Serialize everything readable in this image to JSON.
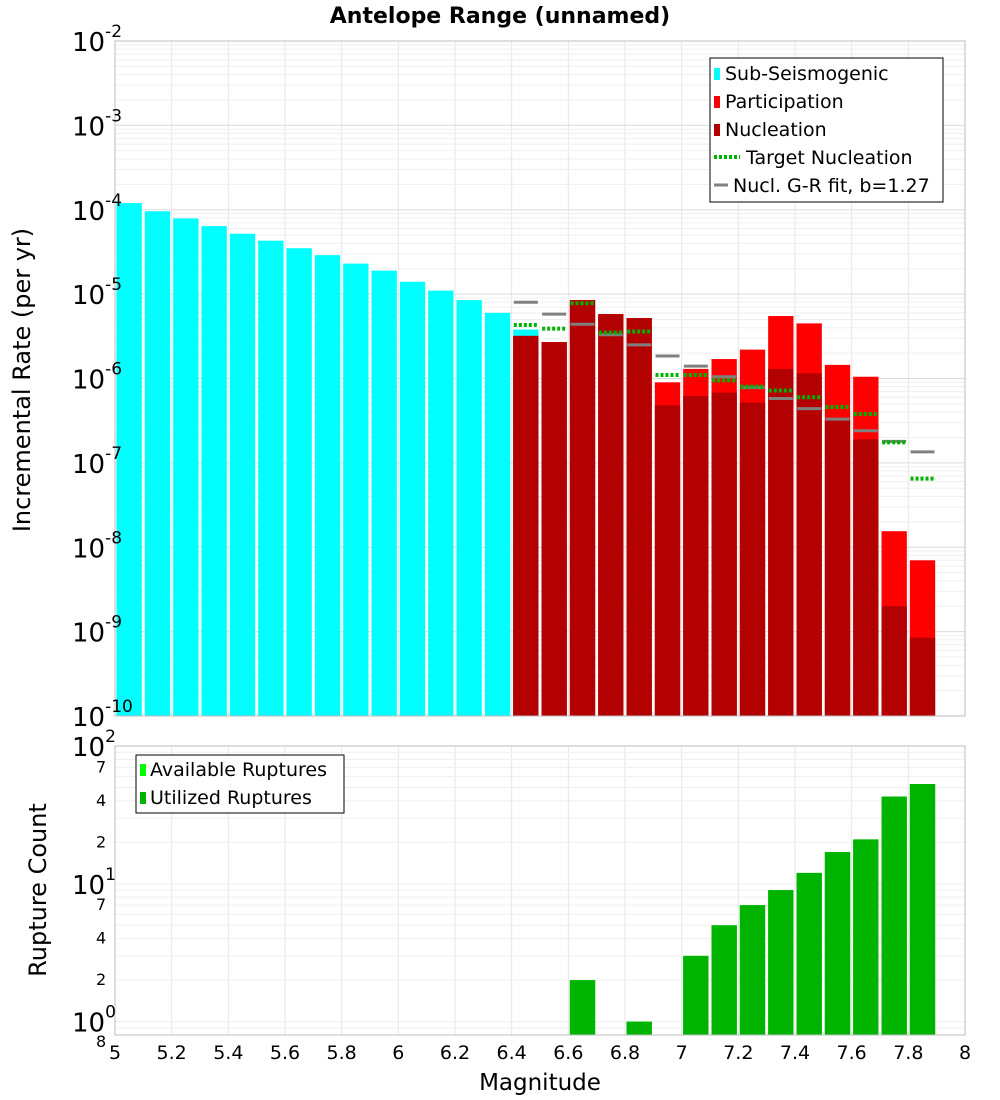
{
  "chart_data": [
    {
      "type": "bar",
      "title": "Antelope Range (unnamed)",
      "xlabel": "",
      "ylabel": "Incremental Rate (per yr)",
      "yscale": "log",
      "xlim": [
        5,
        8
      ],
      "ylim": [
        1e-10,
        0.01
      ],
      "y_ticks": [
        {
          "base": "10",
          "exp": "-10",
          "v": 1e-10
        },
        {
          "base": "10",
          "exp": "-9",
          "v": 1e-09
        },
        {
          "base": "10",
          "exp": "-8",
          "v": 1e-08
        },
        {
          "base": "10",
          "exp": "-7",
          "v": 1e-07
        },
        {
          "base": "10",
          "exp": "-6",
          "v": 1e-06
        },
        {
          "base": "10",
          "exp": "-5",
          "v": 1e-05
        },
        {
          "base": "10",
          "exp": "-4",
          "v": 0.0001
        },
        {
          "base": "10",
          "exp": "-3",
          "v": 0.001
        },
        {
          "base": "10",
          "exp": "-2",
          "v": 0.01
        }
      ],
      "legend": {
        "position": "top-right",
        "entries": [
          {
            "label": "Sub-Seismogenic",
            "color": "#00ffff",
            "style": "box"
          },
          {
            "label": "Participation",
            "color": "#ff0000",
            "style": "box"
          },
          {
            "label": "Nucleation",
            "color": "#b30000",
            "style": "box"
          },
          {
            "label": "Target Nucleation",
            "color": "#00b300",
            "style": "dotted"
          },
          {
            "label": "Nucl. G-R fit, b=1.27",
            "color": "#808080",
            "style": "line"
          }
        ]
      },
      "series": [
        {
          "name": "Sub-Seismogenic",
          "color": "#00ffff",
          "x": [
            5.0,
            5.1,
            5.2,
            5.3,
            5.4,
            5.5,
            5.6,
            5.7,
            5.8,
            5.9,
            6.0,
            6.1,
            6.2,
            6.3,
            6.4
          ],
          "values": [
            0.00012,
            9.6e-05,
            7.9e-05,
            6.4e-05,
            5.2e-05,
            4.3e-05,
            3.5e-05,
            2.9e-05,
            2.3e-05,
            1.9e-05,
            1.4e-05,
            1.1e-05,
            8.5e-06,
            6e-06,
            3.8e-06
          ]
        },
        {
          "name": "Participation",
          "color": "#ff0000",
          "x": [
            6.4,
            6.5,
            6.6,
            6.7,
            6.8,
            6.9,
            7.0,
            7.1,
            7.2,
            7.3,
            7.4,
            7.5,
            7.6,
            7.7,
            7.8,
            7.9
          ],
          "values": [
            3.2e-06,
            2.7e-06,
            8.5e-06,
            5.8e-06,
            5.2e-06,
            9e-07,
            1.3e-06,
            1.7e-06,
            2.2e-06,
            5.5e-06,
            4.5e-06,
            1.45e-06,
            1.05e-06,
            1.55e-08,
            7e-09,
            0
          ]
        },
        {
          "name": "Nucleation",
          "color": "#b30000",
          "x": [
            6.4,
            6.5,
            6.6,
            6.7,
            6.8,
            6.9,
            7.0,
            7.1,
            7.2,
            7.3,
            7.4,
            7.5,
            7.6,
            7.7,
            7.8,
            7.9
          ],
          "values": [
            3.2e-06,
            2.7e-06,
            8.5e-06,
            5.8e-06,
            5.2e-06,
            4.8e-07,
            6.2e-07,
            6.8e-07,
            5.2e-07,
            1.3e-06,
            1.15e-06,
            3.3e-07,
            1.9e-07,
            2e-09,
            8.5e-10,
            0
          ]
        },
        {
          "name": "Target Nucleation",
          "color": "#00b300",
          "x": [
            6.45,
            6.55,
            6.65,
            6.75,
            6.85,
            6.95,
            7.05,
            7.15,
            7.25,
            7.35,
            7.45,
            7.55,
            7.65,
            7.75,
            7.85
          ],
          "values": [
            4.3e-06,
            3.9e-06,
            7.8e-06,
            3.5e-06,
            3.6e-06,
            1.1e-06,
            1.1e-06,
            9.5e-07,
            8e-07,
            7.2e-07,
            6e-07,
            4.6e-07,
            3.8e-07,
            1.75e-07,
            6.5e-08
          ]
        },
        {
          "name": "Nucl. G-R fit, b=1.27",
          "color": "#808080",
          "x": [
            6.45,
            6.55,
            6.65,
            6.75,
            6.85,
            6.95,
            7.05,
            7.15,
            7.25,
            7.35,
            7.45,
            7.55,
            7.65,
            7.75,
            7.85
          ],
          "values": [
            8e-06,
            5.8e-06,
            4.4e-06,
            3.3e-06,
            2.5e-06,
            1.85e-06,
            1.4e-06,
            1.05e-06,
            7.8e-07,
            5.8e-07,
            4.4e-07,
            3.3e-07,
            2.4e-07,
            1.8e-07,
            1.35e-07
          ]
        }
      ]
    },
    {
      "type": "bar",
      "title": "",
      "xlabel": "Magnitude",
      "ylabel": "Rupture Count",
      "yscale": "log",
      "xlim": [
        5,
        8
      ],
      "ylim": [
        0.8,
        100
      ],
      "x_ticks": [
        "5",
        "5.2",
        "5.4",
        "5.6",
        "5.8",
        "6",
        "6.2",
        "6.4",
        "6.6",
        "6.8",
        "7",
        "7.2",
        "7.4",
        "7.6",
        "7.8",
        "8"
      ],
      "y_major_ticks": [
        {
          "base": "10",
          "exp": "0",
          "v": 1
        },
        {
          "base": "10",
          "exp": "1",
          "v": 10
        },
        {
          "base": "10",
          "exp": "2",
          "v": 100
        }
      ],
      "y_minor_ticks": [
        {
          "label": "8",
          "v": 0.8
        },
        {
          "label": "2",
          "v": 2
        },
        {
          "label": "4",
          "v": 4
        },
        {
          "label": "7",
          "v": 7
        },
        {
          "label": "2",
          "v": 20
        },
        {
          "label": "4",
          "v": 40
        },
        {
          "label": "7",
          "v": 70
        }
      ],
      "legend": {
        "position": "top-left",
        "entries": [
          {
            "label": "Available Ruptures",
            "color": "#00ff00",
            "style": "box"
          },
          {
            "label": "Utilized Ruptures",
            "color": "#00b300",
            "style": "box"
          }
        ]
      },
      "series": [
        {
          "name": "Available Ruptures",
          "color": "#00ff00",
          "x": [
            6.6,
            6.8,
            7.0,
            7.1,
            7.2,
            7.3,
            7.4,
            7.5,
            7.6,
            7.7,
            7.8,
            7.9
          ],
          "values": [
            2,
            1,
            3,
            5,
            7,
            9,
            12,
            17,
            21,
            43,
            53,
            0
          ]
        },
        {
          "name": "Utilized Ruptures",
          "color": "#00b300",
          "x": [
            6.6,
            6.8,
            7.0,
            7.1,
            7.2,
            7.3,
            7.4,
            7.5,
            7.6,
            7.7,
            7.8,
            7.9
          ],
          "values": [
            2,
            1,
            3,
            5,
            7,
            9,
            12,
            17,
            21,
            43,
            53,
            0
          ]
        }
      ]
    }
  ]
}
